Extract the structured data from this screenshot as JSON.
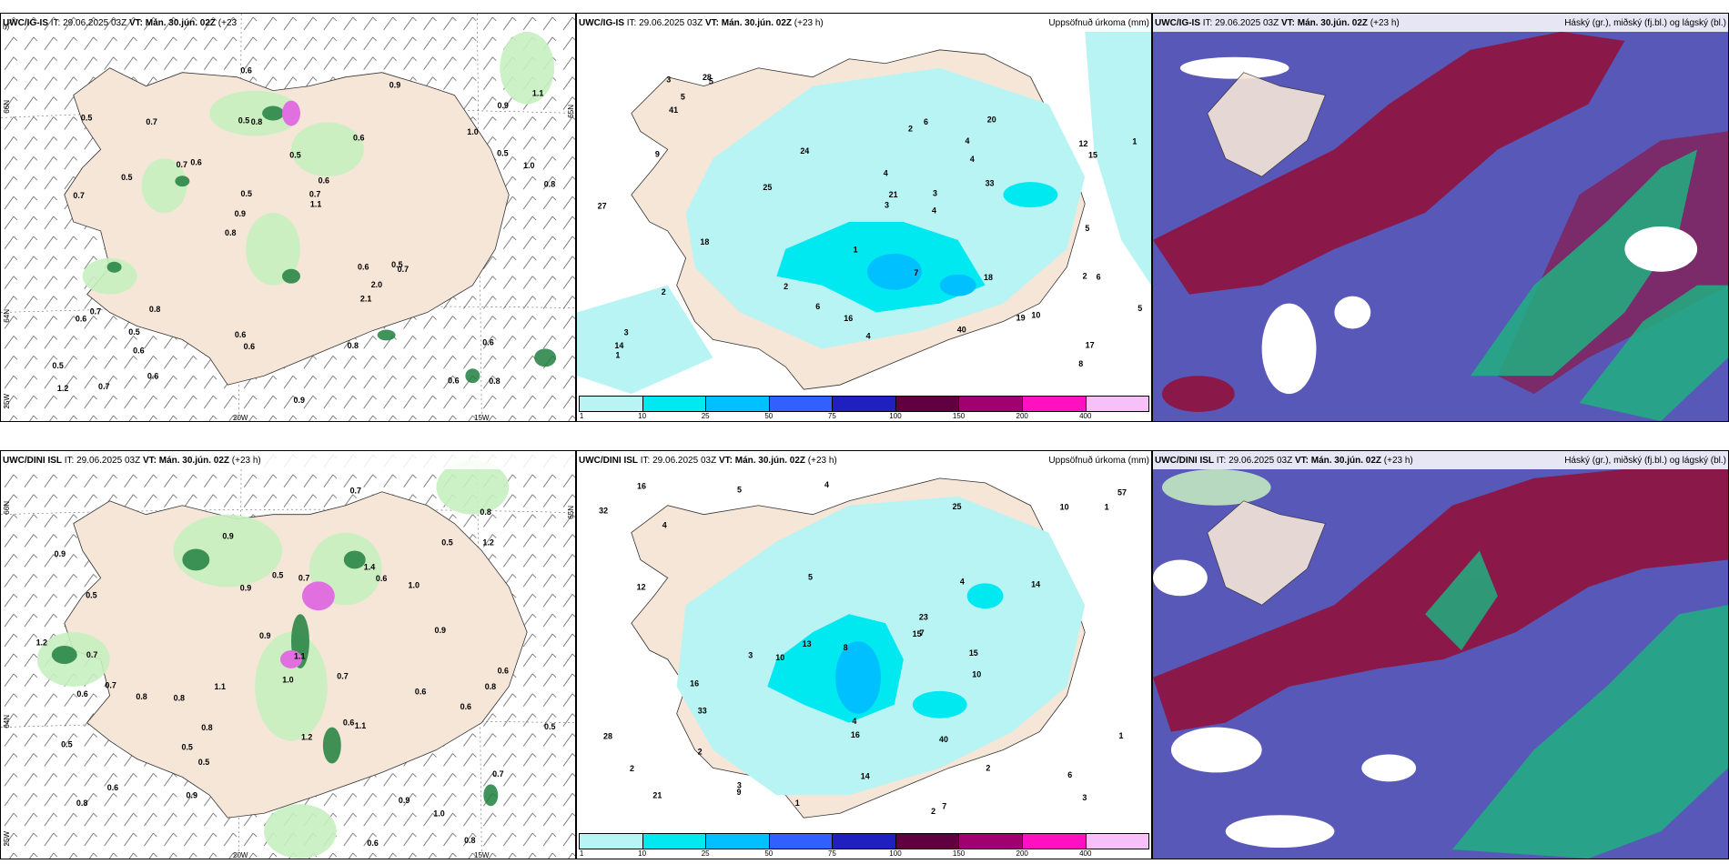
{
  "colors": {
    "land": "#f5e6d8",
    "precip_light": "#b8f4f4",
    "precip_10": "#00e8f0",
    "precip_25": "#00c0ff",
    "precip_50": "#3060ff",
    "precip_75": "#2020c0",
    "precip_100": "#600040",
    "precip_150": "#a00070",
    "precip_200": "#ff10c0",
    "precip_400": "#f8c0f8",
    "cloud_high": "#8a1848",
    "cloud_mid": "#5858b8",
    "cloud_low": "#20b080",
    "wind_green_light": "#c8f0c0",
    "wind_green_dark": "#208040",
    "wind_pink": "#e070e0"
  },
  "panels": [
    {
      "id": "igis-wind",
      "title_model": "UWC/IG-IS",
      "title_it_label": "IT:",
      "title_it": "29.06.2025 03Z",
      "title_vt_label": "VT:",
      "title_vt": "Mán. 30.jún. 02Z",
      "title_lead": "(+23",
      "title_lead_2": "h)",
      "right_title": "",
      "axis": [
        "66N",
        "64N",
        "25W",
        "20W",
        "15W",
        "65N"
      ]
    },
    {
      "id": "igis-precip",
      "title_model": "UWC/IG-IS",
      "title_it_label": "IT:",
      "title_it": "29.06.2025 03Z",
      "title_vt_label": "VT:",
      "title_vt": "Mán. 30.jún. 02Z",
      "title_lead": "(+23 h)",
      "right_title": "Uppsöfnuð úrkoma (mm)",
      "labels": [
        "2",
        "3",
        "2",
        "5",
        "6",
        "10",
        "4",
        "4",
        "6",
        "3",
        "5",
        "7",
        "5",
        "4",
        "3",
        "6",
        "8",
        "12",
        "17",
        "18",
        "18",
        "20",
        "25",
        "24",
        "28",
        "27",
        "19",
        "40",
        "41",
        "33",
        "16",
        "14",
        "21",
        "15",
        "1",
        "2",
        "2",
        "1",
        "5",
        "9",
        "4",
        "4",
        "3",
        "1"
      ]
    },
    {
      "id": "igis-cloud",
      "title_model": "UWC/IG-IS",
      "title_it_label": "IT:",
      "title_it": "29.06.2025 03Z",
      "title_vt_label": "VT:",
      "title_vt": "Mán. 30.jún. 02Z",
      "title_lead": "(+23 h)",
      "right_title": "Háský (gr.), miðský (fj.bl.) og lágský (bl.)"
    },
    {
      "id": "dini-wind",
      "title_model": "UWC/DINI ISL",
      "title_it_label": "IT:",
      "title_it": "29.06.2025 03Z",
      "title_vt_label": "VT:",
      "title_vt": "Mán. 30.jún. 02Z",
      "title_lead": "(+23 h)",
      "right_title": "",
      "axis": [
        "66N",
        "64N",
        "25W",
        "20W",
        "15W",
        "65N"
      ]
    },
    {
      "id": "dini-precip",
      "title_model": "UWC/DINI ISL",
      "title_it_label": "IT:",
      "title_it": "29.06.2025 03Z",
      "title_vt_label": "VT:",
      "title_vt": "Mán. 30.jún. 02Z",
      "title_lead": "(+23 h)",
      "right_title": "Uppsöfnuð úrkoma (mm)"
    },
    {
      "id": "dini-cloud",
      "title_model": "UWC/DINI ISL",
      "title_it_label": "IT:",
      "title_it": "29.06.2025 03Z",
      "title_vt_label": "VT:",
      "title_vt": "Mán. 30.jún. 02Z",
      "title_lead": "(+23 h)",
      "right_title": "Háský (gr.), miðský (fj.bl.) og lágský (bl.)"
    }
  ],
  "colorbar": {
    "ticks": [
      "1",
      "10",
      "25",
      "50",
      "75",
      "100",
      "150",
      "200",
      "400"
    ]
  },
  "wind_labels_top": [
    "0.8",
    "0.7",
    "0.9",
    "0.8",
    "0.6",
    "0.7",
    "0.5",
    "0.5",
    "0.7",
    "0.6",
    "0.5",
    "0.6",
    "0.8",
    "0.6",
    "0.7",
    "0.5",
    "0.6",
    "0.8",
    "0.6",
    "0.5",
    "0.9",
    "0.6",
    "0.5",
    "0.7",
    "0.9",
    "0.8",
    "0.6",
    "0.6",
    "0.5",
    "0.9",
    "0.7",
    "0.5",
    "2.1",
    "0.6",
    "1.0",
    "0.7",
    "1.2",
    "0.6",
    "1.1",
    "0.6",
    "1.0",
    "1.1",
    "2.0",
    "0.8",
    "0.5"
  ],
  "wind_labels_bottom": [
    "0.8",
    "0.7",
    "0.6",
    "0.9",
    "0.7",
    "0.5",
    "0.6",
    "0.8",
    "1.0",
    "0.5",
    "0.6",
    "1.0",
    "0.5",
    "0.9",
    "0.7",
    "0.5",
    "0.6",
    "1.1",
    "1.2",
    "0.8",
    "0.8",
    "0.7",
    "0.9",
    "0.5",
    "0.6",
    "0.7",
    "0.8",
    "1.0",
    "0.9",
    "1.2",
    "1.1",
    "0.6",
    "0.5",
    "1.4",
    "0.9",
    "0.6",
    "0.8",
    "0.9",
    "0.5",
    "0.6",
    "0.8",
    "1.2",
    "0.9",
    "0.7",
    "1.1"
  ],
  "precip_labels_bottom": [
    "1",
    "2",
    "3",
    "2",
    "5",
    "4",
    "3",
    "3",
    "4",
    "5",
    "10",
    "14",
    "13",
    "16",
    "25",
    "15",
    "12",
    "9",
    "10",
    "32",
    "40",
    "57",
    "23",
    "21",
    "14",
    "16",
    "28",
    "33",
    "16",
    "10",
    "8",
    "7",
    "4",
    "1",
    "2",
    "15",
    "1",
    "2",
    "4",
    "6",
    "7"
  ]
}
